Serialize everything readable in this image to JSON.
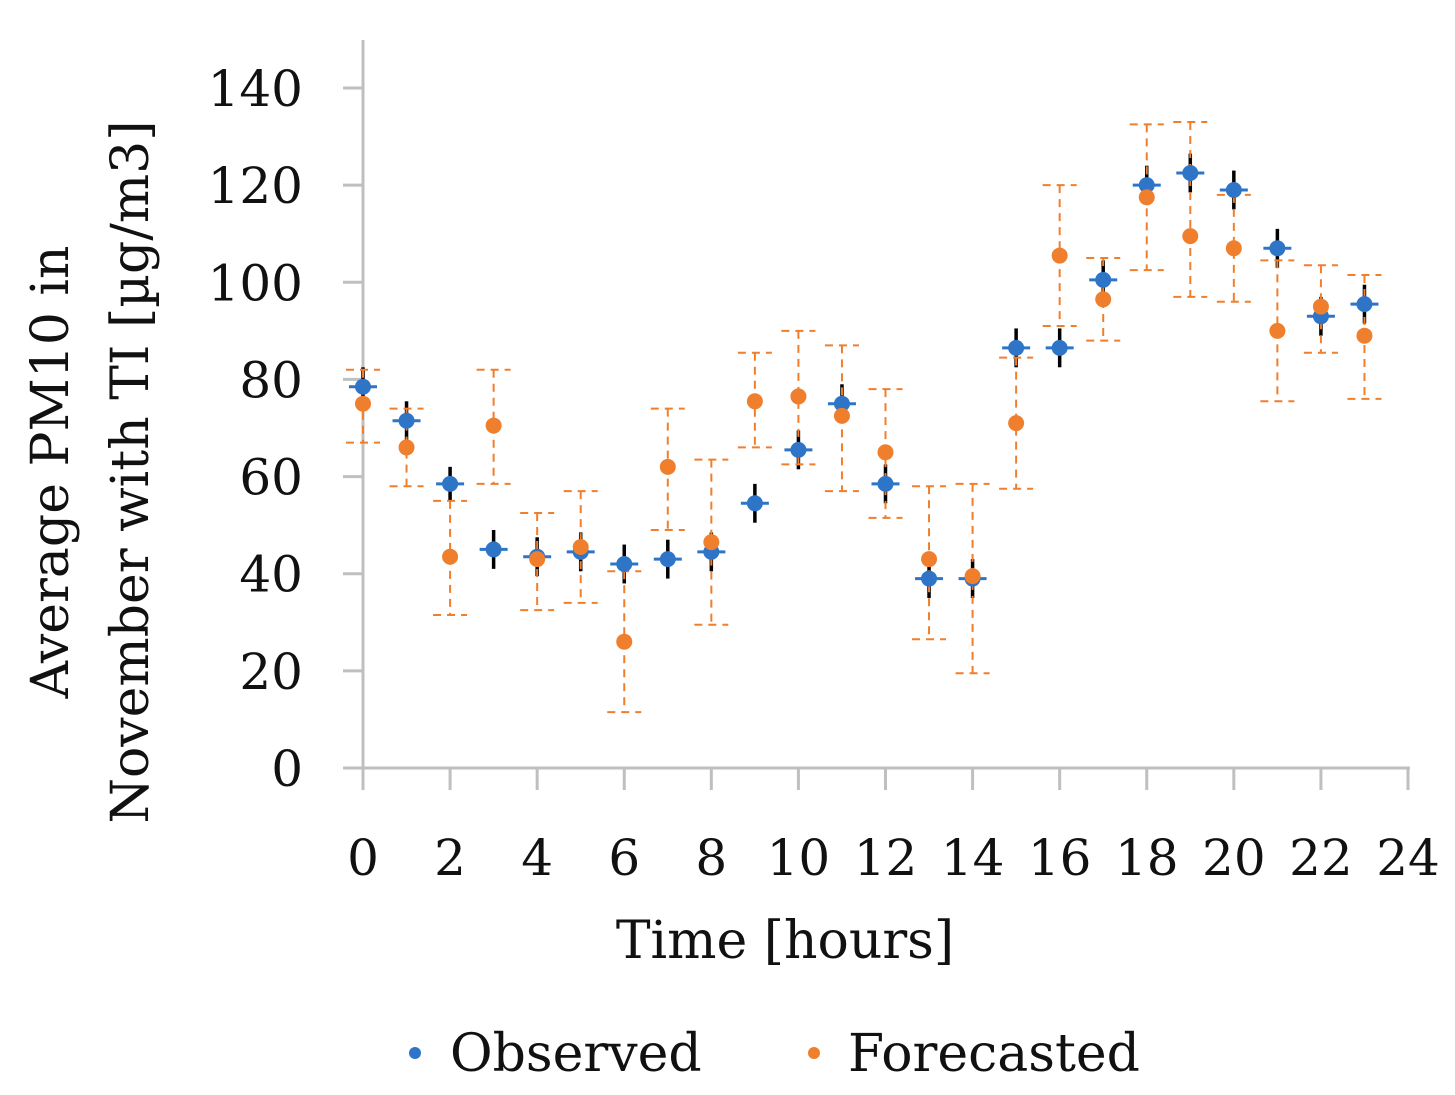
{
  "chart_data": {
    "type": "scatter",
    "title": "",
    "xlabel": "Time [hours]",
    "ylabel_line1": "Average PM10 in",
    "ylabel_line2": "November with TI [µg/m3]",
    "xlim": [
      0,
      24
    ],
    "ylim": [
      0,
      140
    ],
    "x_ticks": [
      "0",
      "2",
      "4",
      "6",
      "8",
      "10",
      "12",
      "14",
      "16",
      "18",
      "20",
      "22",
      "24"
    ],
    "y_ticks": [
      "0",
      "20",
      "40",
      "60",
      "80",
      "100",
      "120",
      "140"
    ],
    "grid": false,
    "legend_position": "bottom",
    "x": [
      0,
      1,
      2,
      3,
      4,
      5,
      6,
      7,
      8,
      9,
      10,
      11,
      12,
      13,
      14,
      15,
      16,
      17,
      18,
      19,
      20,
      21,
      22,
      23
    ],
    "series": [
      {
        "name": "Observed",
        "color": "#2e75c8",
        "values": [
          78.5,
          71.5,
          58.5,
          45,
          43.5,
          44.5,
          42,
          43,
          44.5,
          54.5,
          65.5,
          75,
          58.5,
          39,
          39,
          86.5,
          86.5,
          100.5,
          120,
          122.5,
          119,
          107,
          93,
          95.5
        ],
        "err_color": "#000000",
        "err_minus": [
          4,
          4,
          3.5,
          4,
          4,
          4,
          4,
          4,
          4,
          4,
          4,
          4,
          4,
          4,
          4,
          4,
          4,
          4,
          4,
          4,
          4,
          4,
          4,
          4
        ],
        "err_plus": [
          4,
          4,
          3.5,
          4,
          4,
          4,
          4,
          4,
          4,
          4,
          4,
          4,
          4,
          4,
          4,
          4,
          4,
          4,
          4,
          4,
          4,
          4,
          4,
          4
        ]
      },
      {
        "name": "Forecasted",
        "color": "#f07f2d",
        "values": [
          75,
          66,
          43.5,
          70.5,
          43,
          45.5,
          26,
          62,
          46.5,
          75.5,
          76.5,
          72.5,
          65,
          43,
          39.5,
          71,
          105.5,
          96.5,
          117.5,
          109.5,
          107,
          90,
          95,
          89
        ],
        "err_color": "#f07f2d",
        "err_minus": [
          8,
          8,
          12,
          12,
          10.5,
          11.5,
          14.5,
          13,
          17,
          9.5,
          14,
          15.5,
          13.5,
          16.5,
          20,
          13.5,
          14.5,
          8.5,
          15,
          12.5,
          11,
          14.5,
          9.5,
          13
        ],
        "err_plus": [
          7,
          8,
          11.5,
          11.5,
          9.5,
          11.5,
          14.5,
          12,
          17,
          10,
          13.5,
          14.5,
          13,
          15,
          19,
          13.5,
          14.5,
          8.5,
          15,
          23.5,
          11,
          14.5,
          8.5,
          12.5
        ]
      }
    ]
  }
}
